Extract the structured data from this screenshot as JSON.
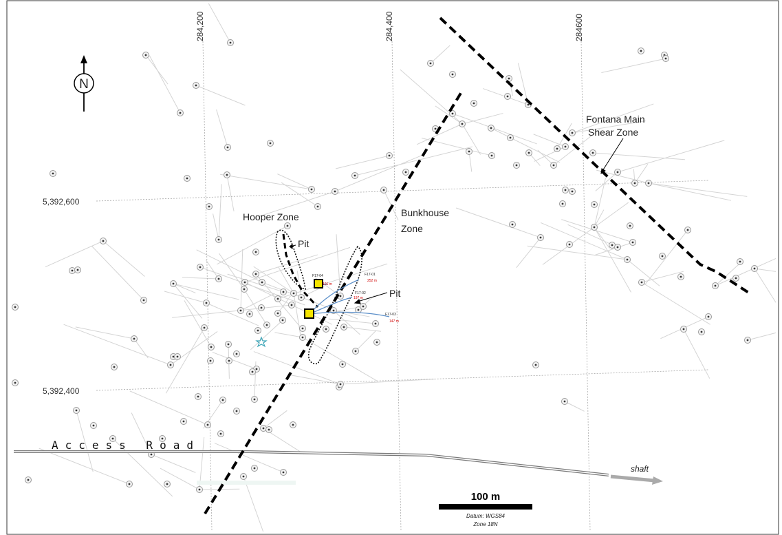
{
  "map": {
    "easting_labels": [
      "284,200",
      "284,400",
      "284600"
    ],
    "northing_labels": [
      "5,392,600",
      "5,392,400"
    ],
    "north_arrow_letter": "N",
    "zones": {
      "hooper": "Hooper Zone",
      "bunkhouse_line1": "Bunkhouse",
      "bunkhouse_line2": "Zone",
      "fontana_line1": "Fontana Main",
      "fontana_line2": "Shear Zone"
    },
    "pit_labels": [
      "Pit",
      "Pit"
    ],
    "road_label": "Access Road",
    "shaft_label": "shaft",
    "holes": [
      {
        "id": "F17-04",
        "length": "101 m"
      },
      {
        "id": "F17-01",
        "length": "252 m"
      },
      {
        "id": "F17-02",
        "length": "197 m"
      },
      {
        "id": "F17-03",
        "length": "147 m"
      }
    ],
    "scale_label": "100 m",
    "datum_line1": "Datum: WGS84",
    "datum_line2": "Zone 18N",
    "colors": {
      "fault": "#000000",
      "collar_fill": "#f5e400",
      "drill_trace": "#5b8fc9",
      "road": "#888888",
      "star": "#3fa6b8"
    }
  }
}
